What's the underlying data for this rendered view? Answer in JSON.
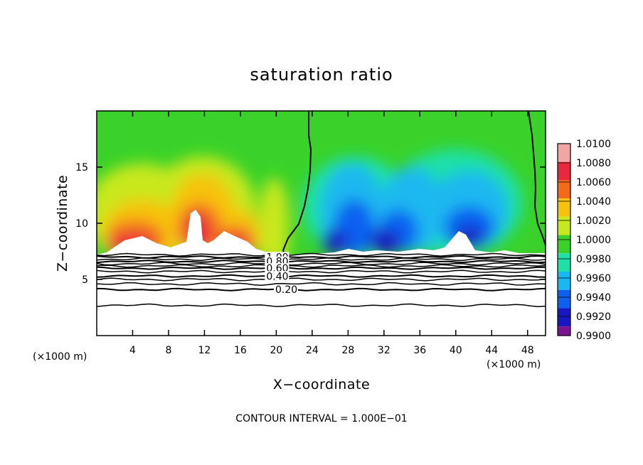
{
  "chart_data": {
    "type": "heatmap",
    "title": "saturation ratio",
    "xlabel": "X−coordinate",
    "ylabel": "Z−coordinate",
    "x_unit": "(×1000 m)",
    "y_unit": "(×1000 m)",
    "xlim": [
      0,
      50
    ],
    "ylim": [
      0,
      20
    ],
    "x_ticks": [
      4,
      8,
      12,
      16,
      20,
      24,
      28,
      32,
      36,
      40,
      44,
      48
    ],
    "y_ticks": [
      5,
      10,
      15
    ],
    "colorbar": {
      "levels": [
        "1.0100",
        "1.0080",
        "1.0060",
        "1.0040",
        "1.0020",
        "1.0000",
        "0.9980",
        "0.9960",
        "0.9940",
        "0.9920",
        "0.9900"
      ],
      "colors": [
        "#f2a5a5",
        "#e8283c",
        "#f26a1a",
        "#f7c20a",
        "#c8e81e",
        "#3ad22a",
        "#1fe0a8",
        "#1ab8f0",
        "#1060f0",
        "#1818c0",
        "#7a1490"
      ]
    },
    "contour_lines": [
      {
        "label": "1.00",
        "z": 7.0
      },
      {
        "label": "0.80",
        "z": 6.6
      },
      {
        "label": "0.60",
        "z": 6.0
      },
      {
        "label": "0.40",
        "z": 5.3
      },
      {
        "label": "0.20",
        "z": 4.1
      }
    ],
    "contour_interval_text": "CONTOUR INTERVAL = 1.000E−01"
  }
}
